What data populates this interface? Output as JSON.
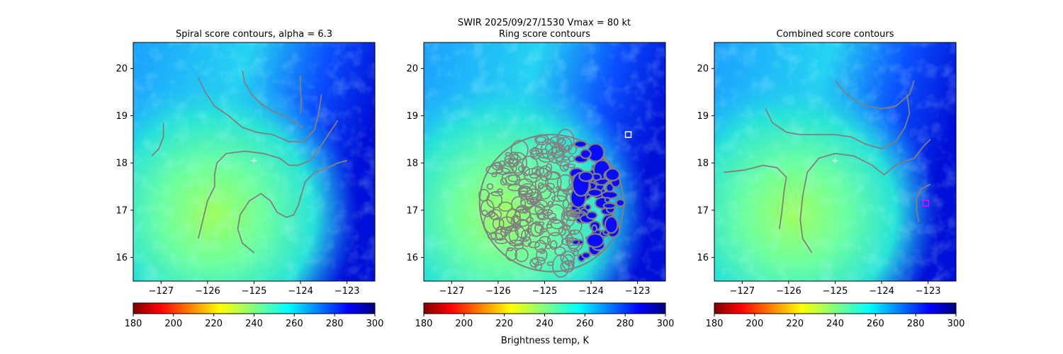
{
  "suptitle": "SWIR  2025/09/27/1530    Vmax = 80 kt",
  "colorbar_label": "Brightness temp, K",
  "chart_data": [
    {
      "type": "heatmap",
      "title": "Spiral score contours, alpha =  6.3",
      "xlim": [
        -127.6,
        -122.4
      ],
      "ylim": [
        15.5,
        20.55
      ],
      "xticks": [
        -127,
        -126,
        -125,
        -124,
        -123
      ],
      "yticks": [
        16,
        17,
        18,
        19,
        20
      ],
      "center": [
        -125.0,
        18.05
      ],
      "marker": null,
      "contours": [
        [
          [
            -127.2,
            18.15
          ],
          [
            -127.05,
            18.3
          ],
          [
            -126.95,
            18.55
          ],
          [
            -126.95,
            18.85
          ]
        ],
        [
          [
            -125.25,
            19.95
          ],
          [
            -125.2,
            19.7
          ],
          [
            -125.05,
            19.45
          ],
          [
            -124.85,
            19.25
          ],
          [
            -124.6,
            19.1
          ],
          [
            -124.35,
            19.0
          ],
          [
            -124.1,
            18.85
          ],
          [
            -123.95,
            18.75
          ]
        ],
        [
          [
            -124.0,
            19.85
          ],
          [
            -124.0,
            19.5
          ],
          [
            -123.98,
            19.25
          ],
          [
            -124.0,
            19.05
          ]
        ],
        [
          [
            -126.2,
            19.8
          ],
          [
            -126.05,
            19.5
          ],
          [
            -125.85,
            19.2
          ],
          [
            -125.55,
            19.0
          ],
          [
            -125.25,
            18.75
          ],
          [
            -124.95,
            18.65
          ],
          [
            -124.6,
            18.6
          ],
          [
            -124.25,
            18.45
          ],
          [
            -123.95,
            18.45
          ],
          [
            -123.7,
            18.7
          ],
          [
            -123.6,
            19.1
          ],
          [
            -123.55,
            19.45
          ]
        ],
        [
          [
            -126.2,
            16.4
          ],
          [
            -126.1,
            16.8
          ],
          [
            -126.0,
            17.2
          ],
          [
            -125.85,
            17.5
          ],
          [
            -125.85,
            17.75
          ],
          [
            -125.8,
            18.0
          ],
          [
            -125.6,
            18.2
          ],
          [
            -125.2,
            18.25
          ],
          [
            -124.8,
            18.2
          ],
          [
            -124.45,
            18.1
          ],
          [
            -124.25,
            17.95
          ],
          [
            -124.05,
            17.95
          ],
          [
            -123.8,
            18.05
          ],
          [
            -123.6,
            18.3
          ],
          [
            -123.4,
            18.6
          ],
          [
            -123.2,
            18.9
          ]
        ],
        [
          [
            -125.0,
            16.1
          ],
          [
            -125.25,
            16.3
          ],
          [
            -125.35,
            16.6
          ],
          [
            -125.3,
            16.9
          ],
          [
            -125.1,
            17.2
          ],
          [
            -124.85,
            17.35
          ],
          [
            -124.65,
            17.2
          ],
          [
            -124.5,
            16.95
          ],
          [
            -124.3,
            16.85
          ],
          [
            -124.15,
            16.9
          ],
          [
            -124.05,
            17.1
          ],
          [
            -123.9,
            17.6
          ],
          [
            -123.7,
            17.8
          ],
          [
            -123.4,
            17.9
          ],
          [
            -123.2,
            18.0
          ],
          [
            -123.0,
            18.05
          ]
        ]
      ]
    },
    {
      "type": "heatmap",
      "title": "Ring score contours",
      "xlim": [
        -127.6,
        -122.4
      ],
      "ylim": [
        15.5,
        20.55
      ],
      "xticks": [
        -127,
        -126,
        -125,
        -124,
        -123
      ],
      "yticks": [
        16,
        17,
        18,
        19,
        20
      ],
      "center": null,
      "marker": [
        -123.2,
        18.6
      ],
      "ring": {
        "center": [
          -124.85,
          17.15
        ],
        "rx": 1.55,
        "ry": 1.45
      }
    },
    {
      "type": "heatmap",
      "title": "Combined score contours",
      "xlim": [
        -127.6,
        -122.4
      ],
      "ylim": [
        15.5,
        20.55
      ],
      "xticks": [
        -127,
        -126,
        -125,
        -124,
        -123
      ],
      "yticks": [
        16,
        17,
        18,
        19,
        20
      ],
      "center": [
        -125.0,
        18.05
      ],
      "marker": [
        -123.05,
        17.15
      ],
      "contours": [
        [
          [
            -126.5,
            19.15
          ],
          [
            -126.35,
            18.85
          ],
          [
            -126.05,
            18.65
          ],
          [
            -125.75,
            18.6
          ],
          [
            -125.35,
            18.6
          ],
          [
            -125.0,
            18.6
          ],
          [
            -124.65,
            18.55
          ],
          [
            -124.35,
            18.4
          ],
          [
            -124.0,
            18.3
          ],
          [
            -123.7,
            18.45
          ],
          [
            -123.5,
            18.75
          ],
          [
            -123.4,
            19.05
          ],
          [
            -123.45,
            19.45
          ]
        ],
        [
          [
            -126.2,
            16.6
          ],
          [
            -126.15,
            16.95
          ],
          [
            -126.1,
            17.4
          ],
          [
            -126.05,
            17.7
          ],
          [
            -126.25,
            17.9
          ],
          [
            -126.55,
            17.95
          ],
          [
            -126.95,
            17.85
          ],
          [
            -127.4,
            17.8
          ]
        ],
        [
          [
            -125.0,
            19.75
          ],
          [
            -124.8,
            19.5
          ],
          [
            -124.55,
            19.3
          ],
          [
            -124.3,
            19.2
          ],
          [
            -124.0,
            19.15
          ],
          [
            -123.7,
            19.2
          ],
          [
            -123.4,
            19.45
          ],
          [
            -123.3,
            19.75
          ]
        ],
        [
          [
            -125.5,
            16.1
          ],
          [
            -125.7,
            16.4
          ],
          [
            -125.75,
            16.8
          ],
          [
            -125.7,
            17.3
          ],
          [
            -125.6,
            17.8
          ],
          [
            -125.35,
            18.1
          ],
          [
            -125.0,
            18.2
          ],
          [
            -124.6,
            18.15
          ],
          [
            -124.2,
            17.95
          ],
          [
            -123.95,
            17.75
          ],
          [
            -123.7,
            17.95
          ],
          [
            -123.45,
            18.05
          ],
          [
            -123.3,
            18.1
          ],
          [
            -123.1,
            18.35
          ],
          [
            -122.95,
            18.5
          ]
        ],
        [
          [
            -123.2,
            16.75
          ],
          [
            -123.25,
            17.0
          ],
          [
            -123.25,
            17.25
          ],
          [
            -123.15,
            17.45
          ],
          [
            -122.95,
            17.55
          ]
        ]
      ]
    }
  ],
  "colorbar": {
    "cmap": "jet_r",
    "vmin": 180,
    "vmax": 300,
    "ticks": [
      180,
      200,
      220,
      240,
      260,
      280,
      300
    ]
  }
}
